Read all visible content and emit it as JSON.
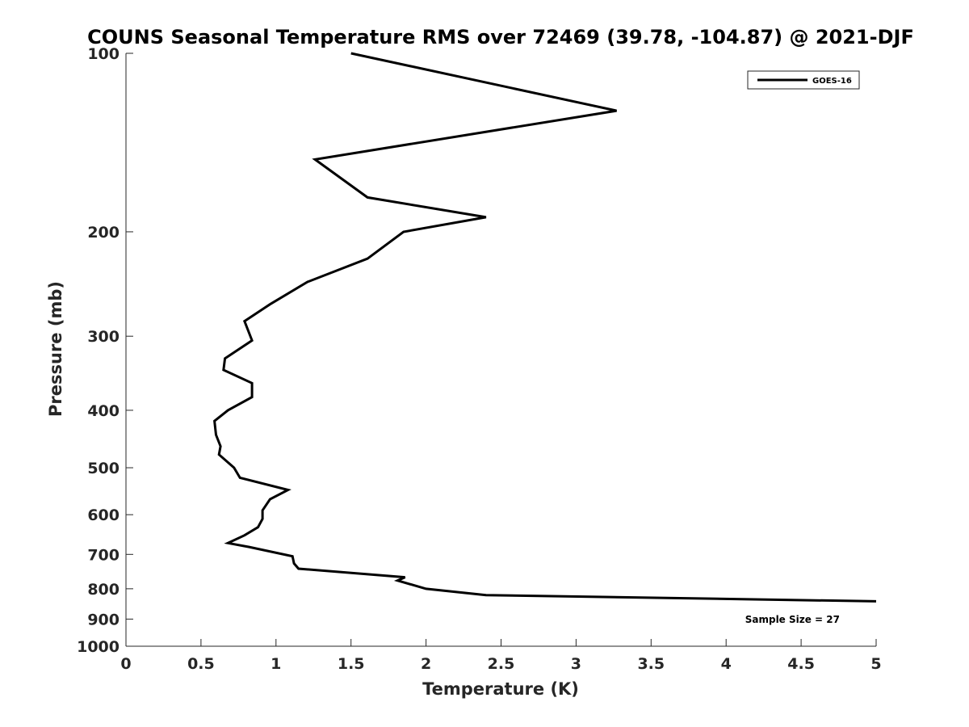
{
  "chart_data": {
    "type": "line",
    "title": "COUNS Seasonal Temperature RMS over 72469 (39.78, -104.87) @ 2021-DJF",
    "xlabel": "Temperature (K)",
    "ylabel": "Pressure (mb)",
    "xlim": [
      0,
      5
    ],
    "ylim": [
      100,
      1000
    ],
    "yscale": "log",
    "y_reversed": true,
    "xticks": [
      0,
      0.5,
      1,
      1.5,
      2,
      2.5,
      3,
      3.5,
      4,
      4.5,
      5
    ],
    "xtick_labels": [
      "0",
      "0.5",
      "1",
      "1.5",
      "2",
      "2.5",
      "3",
      "3.5",
      "4",
      "4.5",
      "5"
    ],
    "yticks": [
      100,
      200,
      300,
      400,
      500,
      600,
      700,
      800,
      900,
      1000
    ],
    "ytick_labels": [
      "100",
      "200",
      "300",
      "400",
      "500",
      "600",
      "700",
      "800",
      "900",
      "1000"
    ],
    "grid": false,
    "legend_position": "top-right",
    "series": [
      {
        "name": "GOES-16",
        "color": "#000000",
        "x": [
          1.5,
          3.27,
          1.26,
          1.61,
          2.4,
          1.85,
          1.61,
          1.21,
          0.96,
          0.79,
          0.84,
          0.66,
          0.65,
          0.84,
          0.84,
          0.68,
          0.59,
          0.6,
          0.63,
          0.62,
          0.72,
          0.76,
          1.08,
          0.96,
          0.91,
          0.91,
          0.88,
          0.79,
          0.68,
          0.82,
          1.11,
          1.12,
          1.15,
          1.86,
          1.81,
          2.0,
          2.4,
          5.0
        ],
        "y": [
          100,
          125,
          151,
          175,
          189,
          200,
          222,
          243,
          265,
          283,
          305,
          327,
          342,
          360,
          380,
          400,
          417,
          440,
          460,
          475,
          500,
          520,
          545,
          565,
          590,
          610,
          630,
          650,
          670,
          680,
          705,
          725,
          740,
          765,
          775,
          800,
          820,
          840
        ]
      }
    ],
    "annotations": [
      "Sample Size = 27"
    ]
  }
}
